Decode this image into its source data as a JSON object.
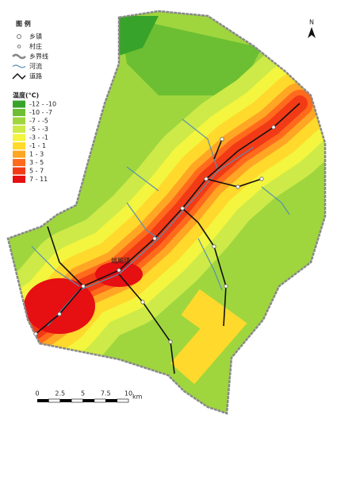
{
  "legend": {
    "title": "图 例",
    "items": [
      "乡镇",
      "村庄",
      "乡界线",
      "河流",
      "道路"
    ]
  },
  "temperature_legend": {
    "title": "温度(°C)",
    "classes": [
      {
        "label": "-12 - -10",
        "color": "#38a32a"
      },
      {
        "label": "-10 - -7",
        "color": "#6cbf32"
      },
      {
        "label": "-7 - -5",
        "color": "#9fd63e"
      },
      {
        "label": "-5 - -3",
        "color": "#cdea48"
      },
      {
        "label": "-3 - -1",
        "color": "#f3f53f"
      },
      {
        "label": "-1 - 1",
        "color": "#ffd92b"
      },
      {
        "label": "1 - 3",
        "color": "#ffa624"
      },
      {
        "label": "3 - 5",
        "color": "#ff6a1c"
      },
      {
        "label": "5 - 7",
        "color": "#f23a16"
      },
      {
        "label": "7 - 11",
        "color": "#e60f12"
      }
    ]
  },
  "north": "N",
  "scale_bar": {
    "ticks": [
      0,
      2.5,
      5,
      7.5,
      10
    ],
    "unit": "km"
  },
  "places": [
    "城厢镇"
  ]
}
